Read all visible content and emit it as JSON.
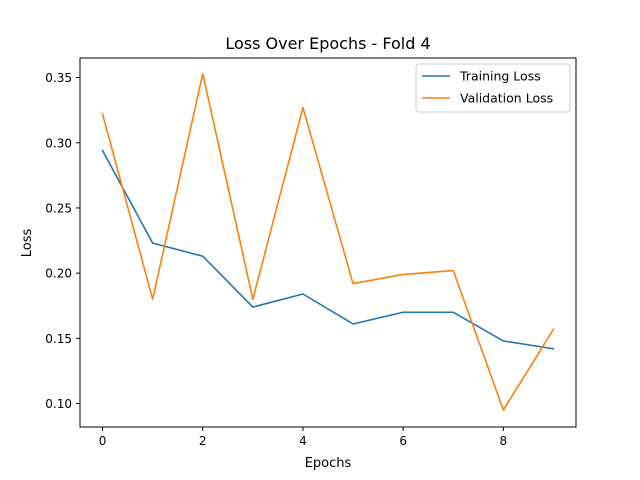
{
  "chart_data": {
    "type": "line",
    "title": "Loss Over Epochs - Fold 4",
    "xlabel": "Epochs",
    "ylabel": "Loss",
    "x": [
      0,
      1,
      2,
      3,
      4,
      5,
      6,
      7,
      8,
      9
    ],
    "xlim": [
      -0.45,
      9.45
    ],
    "ylim": [
      0.082,
      0.365
    ],
    "xticks": [
      0,
      2,
      4,
      6,
      8
    ],
    "yticks": [
      0.1,
      0.15,
      0.2,
      0.25,
      0.3,
      0.35
    ],
    "xtick_labels": [
      "0",
      "2",
      "4",
      "6",
      "8"
    ],
    "ytick_labels": [
      "0.10",
      "0.15",
      "0.20",
      "0.25",
      "0.30",
      "0.35"
    ],
    "grid": false,
    "legend_position": "top-right",
    "series": [
      {
        "name": "Training Loss",
        "color": "#1f77b4",
        "values": [
          0.294,
          0.223,
          0.213,
          0.174,
          0.184,
          0.161,
          0.17,
          0.17,
          0.148,
          0.142
        ]
      },
      {
        "name": "Validation Loss",
        "color": "#ff7f0e",
        "values": [
          0.322,
          0.18,
          0.353,
          0.18,
          0.327,
          0.192,
          0.199,
          0.202,
          0.095,
          0.157
        ]
      }
    ]
  }
}
